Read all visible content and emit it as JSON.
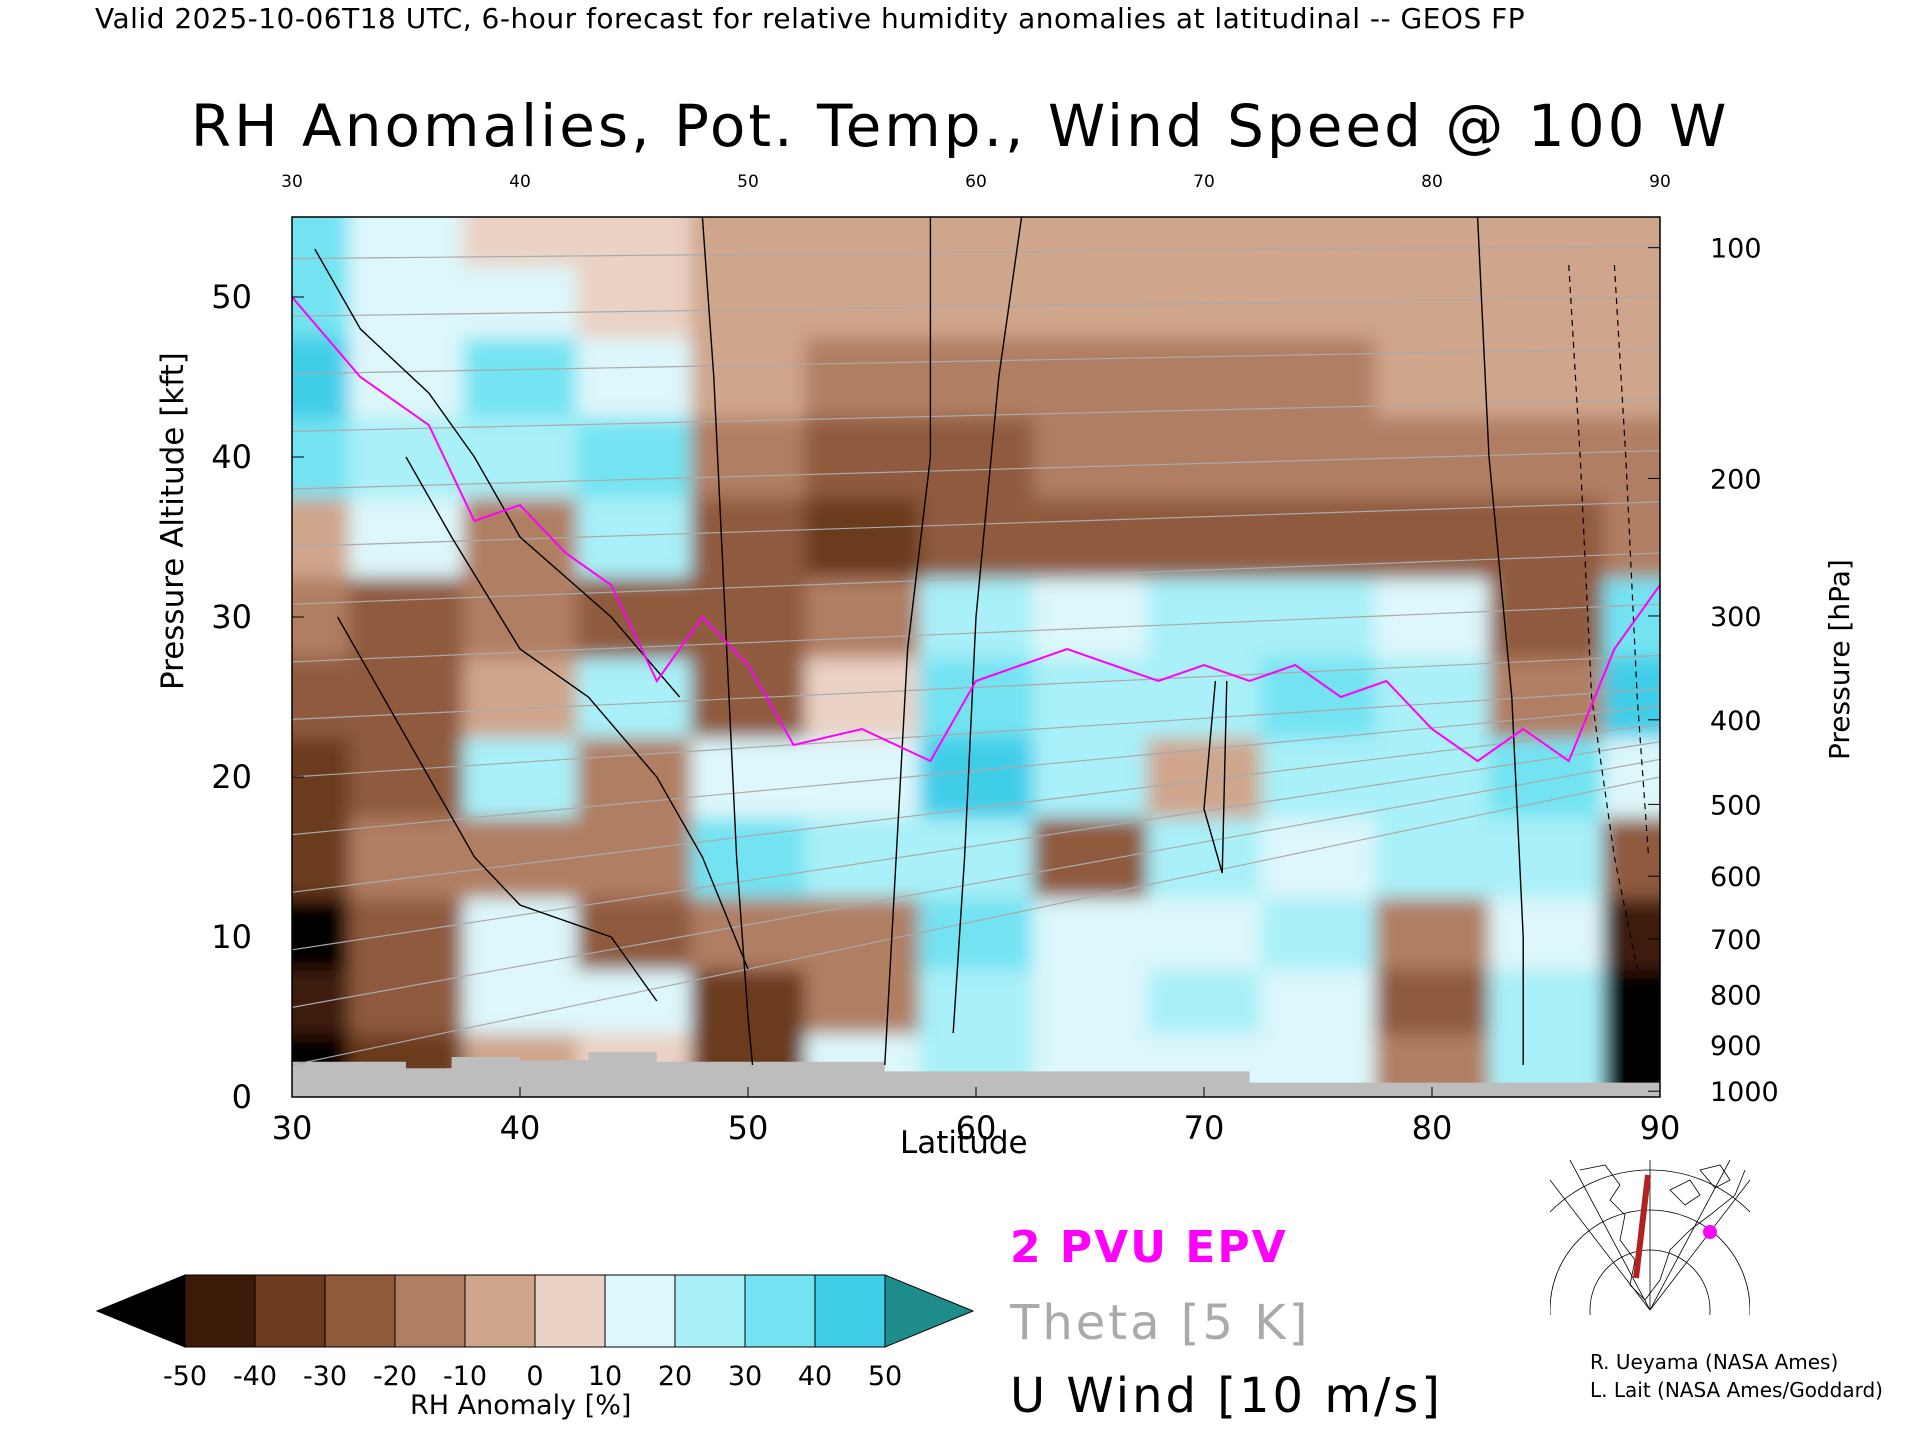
{
  "header": {
    "valid_line": "Valid 2025-10-06T18 UTC, 6-hour forecast for relative humidity anomalies at latitudinal -- GEOS FP",
    "title": "RH Anomalies, Pot. Temp., Wind Speed @ 100 W"
  },
  "axes": {
    "xlabel": "Latitude",
    "ylabel": "Pressure Altitude [kft]",
    "right_label": "Pressure [hPa]",
    "x_ticks": [
      "30",
      "40",
      "50",
      "60",
      "70",
      "80",
      "90"
    ],
    "y_ticks": [
      "0",
      "10",
      "20",
      "30",
      "40",
      "50"
    ],
    "p_ticks": [
      "100",
      "200",
      "300",
      "400",
      "500",
      "600",
      "700",
      "800",
      "900",
      "1000"
    ]
  },
  "colorbar": {
    "label": "RH Anomaly [%]",
    "ticks": [
      "-50",
      "-40",
      "-30",
      "-20",
      "-10",
      "0",
      "10",
      "20",
      "30",
      "40",
      "50"
    ],
    "colors": [
      "#000000",
      "#3d1a08",
      "#6b3a1f",
      "#8f5a3c",
      "#b07e62",
      "#cfa58c",
      "#ead2c4",
      "#ddf7fb",
      "#a9f0f8",
      "#73e3f2",
      "#3fcde8",
      "#12a6c9",
      "#1f8c8c"
    ]
  },
  "legend": {
    "epv": "2 PVU EPV",
    "theta": "Theta [5 K]",
    "wind": "U Wind [10 m/s]",
    "epv_color": "#ff00ff",
    "theta_color": "#aaaaaa"
  },
  "credits": {
    "line1": "R. Ueyama (NASA Ames)",
    "line2": "L. Lait (NASA Ames/Goddard)"
  },
  "chart_data": {
    "type": "heatmap",
    "title": "RH Anomalies, Pot. Temp., Wind Speed @ 100 W",
    "xlabel": "Latitude",
    "ylabel": "Pressure Altitude [kft]",
    "xlim": [
      30,
      90
    ],
    "ylim": [
      0,
      55
    ],
    "colorbar_range": [
      -50,
      50
    ],
    "x": [
      30,
      35,
      40,
      45,
      50,
      55,
      60,
      65,
      70,
      75,
      80,
      85,
      90
    ],
    "y": [
      2,
      6,
      10,
      15,
      20,
      25,
      30,
      35,
      40,
      45,
      50,
      54
    ],
    "rh_anomaly": [
      [
        -50,
        -35,
        -10,
        5,
        -40,
        15,
        20,
        10,
        15,
        10,
        -20,
        25,
        -50
      ],
      [
        -45,
        -30,
        15,
        10,
        -35,
        -20,
        25,
        15,
        20,
        15,
        -25,
        20,
        -50
      ],
      [
        -50,
        -25,
        10,
        -25,
        -15,
        -20,
        30,
        10,
        15,
        20,
        -20,
        15,
        -45
      ],
      [
        -40,
        -20,
        -15,
        -20,
        35,
        25,
        25,
        -25,
        20,
        15,
        20,
        20,
        -30
      ],
      [
        -35,
        -25,
        20,
        -20,
        15,
        10,
        40,
        20,
        -10,
        25,
        25,
        30,
        10
      ],
      [
        -25,
        -30,
        -10,
        20,
        -30,
        5,
        30,
        20,
        25,
        30,
        20,
        -20,
        45
      ],
      [
        -20,
        -25,
        -20,
        -25,
        -30,
        -20,
        20,
        15,
        20,
        25,
        10,
        -25,
        30
      ],
      [
        -10,
        15,
        -15,
        20,
        -30,
        -35,
        -30,
        -25,
        -30,
        -25,
        -25,
        -25,
        -20
      ],
      [
        30,
        20,
        25,
        30,
        -15,
        -25,
        -25,
        -20,
        -20,
        -20,
        -15,
        -15,
        -15
      ],
      [
        40,
        15,
        30,
        10,
        -10,
        -15,
        -15,
        -15,
        -15,
        -15,
        -10,
        -10,
        -10
      ],
      [
        35,
        10,
        10,
        5,
        -10,
        -10,
        -10,
        -10,
        -10,
        -10,
        -10,
        -10,
        -10
      ],
      [
        30,
        15,
        5,
        0,
        -5,
        -10,
        -10,
        -10,
        -10,
        -10,
        -10,
        -10,
        -5
      ]
    ],
    "epv_2pvu": {
      "lat": [
        30,
        33,
        36,
        38,
        40,
        42,
        44,
        46,
        48,
        50,
        52,
        55,
        58,
        60,
        62,
        64,
        66,
        68,
        70,
        72,
        74,
        76,
        78,
        80,
        82,
        84,
        86,
        88,
        90
      ],
      "kft": [
        50,
        45,
        42,
        36,
        37,
        34,
        32,
        26,
        30,
        27,
        22,
        23,
        21,
        26,
        27,
        28,
        27,
        26,
        27,
        26,
        27,
        25,
        26,
        23,
        21,
        23,
        21,
        28,
        32
      ]
    },
    "theta_levels": [
      280,
      290,
      300,
      310,
      320,
      330,
      340,
      350,
      360,
      370,
      380,
      390,
      400,
      410,
      420
    ],
    "u_wind_levels": [
      0,
      10,
      20,
      30
    ]
  }
}
